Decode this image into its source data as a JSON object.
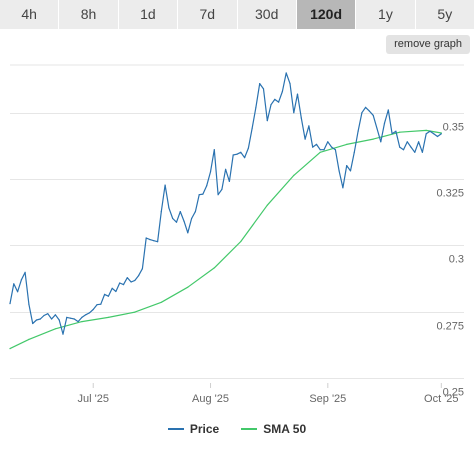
{
  "range_tabs": [
    {
      "label": "4h",
      "active": false
    },
    {
      "label": "8h",
      "active": false
    },
    {
      "label": "1d",
      "active": false
    },
    {
      "label": "7d",
      "active": false
    },
    {
      "label": "30d",
      "active": false
    },
    {
      "label": "120d",
      "active": true
    },
    {
      "label": "1y",
      "active": false
    },
    {
      "label": "5y",
      "active": false
    }
  ],
  "remove_graph_label": "remove graph",
  "colors": {
    "price": "#2a72b0",
    "sma": "#43c86a",
    "grid": "#e6e6e6",
    "axis_text": "#666666"
  },
  "chart_data": {
    "type": "line",
    "x_start": "2025-06-09",
    "x_end": "2025-10-07",
    "xticks": [
      {
        "date": "2025-07-01",
        "label": "Jul '25"
      },
      {
        "date": "2025-08-01",
        "label": "Aug '25"
      },
      {
        "date": "2025-09-01",
        "label": "Sep '25"
      },
      {
        "date": "2025-10-01",
        "label": "Oct '25"
      }
    ],
    "yticks": [
      {
        "value": 0.25,
        "label": "0.25"
      },
      {
        "value": 0.275,
        "label": "0.275"
      },
      {
        "value": 0.3,
        "label": "0.3"
      },
      {
        "value": 0.325,
        "label": "0.325"
      },
      {
        "value": 0.35,
        "label": "0.35"
      }
    ],
    "ylim": [
      0.248,
      0.372
    ],
    "grid": true,
    "legend_position": "bottom",
    "series": [
      {
        "name": "Price",
        "color_key": "price",
        "points": [
          [
            "2025-06-09",
            0.278
          ],
          [
            "2025-06-10",
            0.2855
          ],
          [
            "2025-06-11",
            0.2825
          ],
          [
            "2025-06-12",
            0.287
          ],
          [
            "2025-06-13",
            0.2898
          ],
          [
            "2025-06-14",
            0.2778
          ],
          [
            "2025-06-15",
            0.2705
          ],
          [
            "2025-06-16",
            0.2718
          ],
          [
            "2025-06-17",
            0.2722
          ],
          [
            "2025-06-18",
            0.2735
          ],
          [
            "2025-06-19",
            0.2742
          ],
          [
            "2025-06-20",
            0.2722
          ],
          [
            "2025-06-21",
            0.2738
          ],
          [
            "2025-06-22",
            0.2718
          ],
          [
            "2025-06-23",
            0.2665
          ],
          [
            "2025-06-24",
            0.2728
          ],
          [
            "2025-06-25",
            0.2725
          ],
          [
            "2025-06-26",
            0.2722
          ],
          [
            "2025-06-27",
            0.2712
          ],
          [
            "2025-06-28",
            0.2728
          ],
          [
            "2025-06-29",
            0.2738
          ],
          [
            "2025-06-30",
            0.2745
          ],
          [
            "2025-07-01",
            0.2758
          ],
          [
            "2025-07-02",
            0.2776
          ],
          [
            "2025-07-03",
            0.2778
          ],
          [
            "2025-07-04",
            0.2815
          ],
          [
            "2025-07-05",
            0.2808
          ],
          [
            "2025-07-06",
            0.2838
          ],
          [
            "2025-07-07",
            0.2826
          ],
          [
            "2025-07-08",
            0.2858
          ],
          [
            "2025-07-09",
            0.2852
          ],
          [
            "2025-07-10",
            0.2878
          ],
          [
            "2025-07-11",
            0.2862
          ],
          [
            "2025-07-12",
            0.2868
          ],
          [
            "2025-07-13",
            0.2886
          ],
          [
            "2025-07-14",
            0.2912
          ],
          [
            "2025-07-15",
            0.3028
          ],
          [
            "2025-07-16",
            0.3022
          ],
          [
            "2025-07-17",
            0.3018
          ],
          [
            "2025-07-18",
            0.3014
          ],
          [
            "2025-07-19",
            0.3128
          ],
          [
            "2025-07-20",
            0.3228
          ],
          [
            "2025-07-21",
            0.3142
          ],
          [
            "2025-07-22",
            0.3102
          ],
          [
            "2025-07-23",
            0.3088
          ],
          [
            "2025-07-24",
            0.3128
          ],
          [
            "2025-07-25",
            0.3092
          ],
          [
            "2025-07-26",
            0.3048
          ],
          [
            "2025-07-27",
            0.3102
          ],
          [
            "2025-07-28",
            0.3128
          ],
          [
            "2025-07-29",
            0.3192
          ],
          [
            "2025-07-30",
            0.3194
          ],
          [
            "2025-07-31",
            0.3226
          ],
          [
            "2025-08-01",
            0.3278
          ],
          [
            "2025-08-02",
            0.3362
          ],
          [
            "2025-08-03",
            0.3192
          ],
          [
            "2025-08-04",
            0.3212
          ],
          [
            "2025-08-05",
            0.3288
          ],
          [
            "2025-08-06",
            0.3242
          ],
          [
            "2025-08-07",
            0.3342
          ],
          [
            "2025-08-08",
            0.3345
          ],
          [
            "2025-08-09",
            0.3352
          ],
          [
            "2025-08-10",
            0.3332
          ],
          [
            "2025-08-11",
            0.3368
          ],
          [
            "2025-08-12",
            0.3442
          ],
          [
            "2025-08-13",
            0.3522
          ],
          [
            "2025-08-14",
            0.3612
          ],
          [
            "2025-08-15",
            0.3592
          ],
          [
            "2025-08-16",
            0.3472
          ],
          [
            "2025-08-17",
            0.3532
          ],
          [
            "2025-08-18",
            0.3552
          ],
          [
            "2025-08-19",
            0.3542
          ],
          [
            "2025-08-20",
            0.3582
          ],
          [
            "2025-08-21",
            0.3652
          ],
          [
            "2025-08-22",
            0.3612
          ],
          [
            "2025-08-23",
            0.3502
          ],
          [
            "2025-08-24",
            0.3572
          ],
          [
            "2025-08-25",
            0.3482
          ],
          [
            "2025-08-26",
            0.3402
          ],
          [
            "2025-08-27",
            0.3452
          ],
          [
            "2025-08-28",
            0.3372
          ],
          [
            "2025-08-29",
            0.3382
          ],
          [
            "2025-08-30",
            0.3362
          ],
          [
            "2025-08-31",
            0.3362
          ],
          [
            "2025-09-01",
            0.3392
          ],
          [
            "2025-09-02",
            0.3372
          ],
          [
            "2025-09-03",
            0.3362
          ],
          [
            "2025-09-04",
            0.3282
          ],
          [
            "2025-09-05",
            0.3218
          ],
          [
            "2025-09-06",
            0.3302
          ],
          [
            "2025-09-07",
            0.3282
          ],
          [
            "2025-09-08",
            0.3352
          ],
          [
            "2025-09-09",
            0.3432
          ],
          [
            "2025-09-10",
            0.3502
          ],
          [
            "2025-09-11",
            0.3522
          ],
          [
            "2025-09-12",
            0.3508
          ],
          [
            "2025-09-13",
            0.3492
          ],
          [
            "2025-09-14",
            0.3442
          ],
          [
            "2025-09-15",
            0.3392
          ],
          [
            "2025-09-16",
            0.3462
          ],
          [
            "2025-09-17",
            0.3512
          ],
          [
            "2025-09-18",
            0.3422
          ],
          [
            "2025-09-19",
            0.3432
          ],
          [
            "2025-09-20",
            0.3372
          ],
          [
            "2025-09-21",
            0.3362
          ],
          [
            "2025-09-22",
            0.3392
          ],
          [
            "2025-09-23",
            0.3372
          ],
          [
            "2025-09-24",
            0.3352
          ],
          [
            "2025-09-25",
            0.3392
          ],
          [
            "2025-09-26",
            0.3352
          ],
          [
            "2025-09-27",
            0.3422
          ],
          [
            "2025-09-28",
            0.3432
          ],
          [
            "2025-09-29",
            0.3422
          ],
          [
            "2025-09-30",
            0.3412
          ],
          [
            "2025-10-01",
            0.3422
          ]
        ]
      },
      {
        "name": "SMA 50",
        "color_key": "sma",
        "points": [
          [
            "2025-06-09",
            0.261
          ],
          [
            "2025-06-14",
            0.2645
          ],
          [
            "2025-06-21",
            0.2685
          ],
          [
            "2025-06-28",
            0.2712
          ],
          [
            "2025-07-05",
            0.2728
          ],
          [
            "2025-07-12",
            0.2748
          ],
          [
            "2025-07-19",
            0.2785
          ],
          [
            "2025-07-26",
            0.2842
          ],
          [
            "2025-08-02",
            0.2915
          ],
          [
            "2025-08-09",
            0.3015
          ],
          [
            "2025-08-16",
            0.3152
          ],
          [
            "2025-08-23",
            0.3265
          ],
          [
            "2025-08-30",
            0.3352
          ],
          [
            "2025-09-06",
            0.3382
          ],
          [
            "2025-09-13",
            0.3402
          ],
          [
            "2025-09-20",
            0.3428
          ],
          [
            "2025-09-27",
            0.3435
          ],
          [
            "2025-10-01",
            0.3425
          ]
        ]
      }
    ]
  }
}
